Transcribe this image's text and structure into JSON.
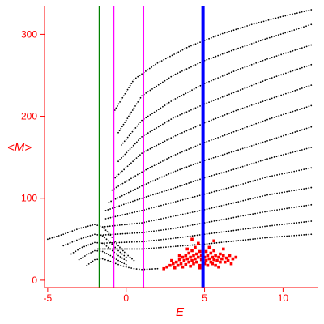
{
  "chart_data": {
    "type": "scatter",
    "title": "",
    "xlabel": "E",
    "ylabel": "<M>",
    "xlim": [
      -5.2,
      12.2
    ],
    "ylim": [
      -9,
      334
    ],
    "xticks": [
      -5,
      0,
      5,
      10
    ],
    "yticks": [
      0,
      100,
      200,
      300
    ],
    "grid": false,
    "colors": {
      "axis": "#ff0000",
      "black_points": "#000000",
      "red_points": "#ff0000",
      "green_line": "#008000",
      "magenta_lines": "#ff00ff",
      "blue_line": "#0000ff"
    },
    "vertical_lines": [
      {
        "x": -1.7,
        "color": "#008000",
        "width": 2
      },
      {
        "x": -0.8,
        "color": "#ff00ff",
        "width": 2
      },
      {
        "x": 1.1,
        "color": "#ff00ff",
        "width": 2
      },
      {
        "x": 4.9,
        "color": "#0000ff",
        "width": 4
      }
    ],
    "series": [
      {
        "color": "#000000",
        "curves": [
          [
            [
              -0.8,
              205
            ],
            [
              0.5,
              245
            ],
            [
              2.0,
              265
            ],
            [
              4.0,
              285
            ],
            [
              6.0,
              300
            ],
            [
              8.0,
              312
            ],
            [
              10.0,
              322
            ],
            [
              11.8,
              330
            ]
          ],
          [
            [
              -0.5,
              180
            ],
            [
              1.0,
              225
            ],
            [
              3.0,
              250
            ],
            [
              5.0,
              268
            ],
            [
              7.0,
              282
            ],
            [
              9.0,
              295
            ],
            [
              11.0,
              307
            ],
            [
              11.8,
              312
            ]
          ],
          [
            [
              -0.3,
              165
            ],
            [
              1.0,
              195
            ],
            [
              3.0,
              220
            ],
            [
              5.0,
              240
            ],
            [
              7.0,
              256
            ],
            [
              9.0,
              270
            ],
            [
              11.8,
              287
            ]
          ],
          [
            [
              -0.5,
              145
            ],
            [
              1.0,
              175
            ],
            [
              3.0,
              198
            ],
            [
              5.0,
              215
            ],
            [
              7.0,
              230
            ],
            [
              9.0,
              245
            ],
            [
              11.8,
              263
            ]
          ],
          [
            [
              -0.7,
              125
            ],
            [
              1.0,
              155
            ],
            [
              3.0,
              175
            ],
            [
              5.0,
              192
            ],
            [
              7.0,
              207
            ],
            [
              9.0,
              220
            ],
            [
              11.8,
              238
            ]
          ],
          [
            [
              -0.9,
              110
            ],
            [
              1.0,
              132
            ],
            [
              3.0,
              152
            ],
            [
              5.0,
              168
            ],
            [
              7.0,
              182
            ],
            [
              9.0,
              196
            ],
            [
              11.8,
              213
            ]
          ],
          [
            [
              -1.1,
              95
            ],
            [
              1.0,
              115
            ],
            [
              3.0,
              132
            ],
            [
              5.0,
              146
            ],
            [
              7.0,
              158
            ],
            [
              9.0,
              170
            ],
            [
              11.8,
              187
            ]
          ],
          [
            [
              -1.3,
              85
            ],
            [
              1.0,
              100
            ],
            [
              3.0,
              112
            ],
            [
              5.0,
              125
            ],
            [
              7.0,
              136
            ],
            [
              9.0,
              148
            ],
            [
              11.8,
              162
            ]
          ],
          [
            [
              -1.3,
              75
            ],
            [
              1.0,
              85
            ],
            [
              3.0,
              95
            ],
            [
              5.0,
              105
            ],
            [
              7.0,
              115
            ],
            [
              9.0,
              126
            ],
            [
              11.8,
              137
            ]
          ],
          [
            [
              -1.5,
              65
            ],
            [
              1.0,
              70
            ],
            [
              3.0,
              78
            ],
            [
              5.0,
              86
            ],
            [
              7.0,
              95
            ],
            [
              9.0,
              104
            ],
            [
              11.8,
              113
            ]
          ],
          [
            [
              -1.6,
              55
            ],
            [
              1.0,
              58
            ],
            [
              3.0,
              63
            ],
            [
              5.0,
              70
            ],
            [
              7.0,
              77
            ],
            [
              9.0,
              84
            ],
            [
              11.8,
              92
            ]
          ],
          [
            [
              -1.7,
              45
            ],
            [
              1.0,
              47
            ],
            [
              3.0,
              51
            ],
            [
              5.0,
              56
            ],
            [
              7.0,
              61
            ],
            [
              9.0,
              66
            ],
            [
              11.8,
              72
            ]
          ],
          [
            [
              -1.8,
              38
            ],
            [
              1.0,
              38
            ],
            [
              3.0,
              41
            ],
            [
              5.0,
              44
            ],
            [
              7.0,
              48
            ],
            [
              9.0,
              52
            ],
            [
              11.8,
              56
            ]
          ],
          [
            [
              -5.0,
              50
            ],
            [
              -4.0,
              56
            ],
            [
              -3.0,
              63
            ],
            [
              -2.0,
              68
            ],
            [
              -1.5,
              65
            ],
            [
              -1.0,
              55
            ],
            [
              -0.5,
              42
            ],
            [
              0.0,
              32
            ],
            [
              0.5,
              24
            ]
          ],
          [
            [
              -4.0,
              42
            ],
            [
              -3.0,
              50
            ],
            [
              -2.0,
              56
            ],
            [
              -1.5,
              54
            ],
            [
              -1.0,
              46
            ],
            [
              -0.5,
              36
            ],
            [
              0.0,
              28
            ]
          ],
          [
            [
              -3.5,
              32
            ],
            [
              -2.8,
              40
            ],
            [
              -2.0,
              46
            ],
            [
              -1.5,
              45
            ],
            [
              -1.0,
              38
            ],
            [
              -0.5,
              30
            ],
            [
              0.0,
              24
            ]
          ],
          [
            [
              -3.0,
              25
            ],
            [
              -2.5,
              31
            ],
            [
              -2.0,
              36
            ],
            [
              -1.5,
              35
            ],
            [
              -1.0,
              30
            ],
            [
              -0.5,
              24
            ],
            [
              0.0,
              19
            ]
          ],
          [
            [
              -2.5,
              18
            ],
            [
              -2.0,
              25
            ],
            [
              -1.5,
              26
            ],
            [
              -1.0,
              23
            ],
            [
              -0.5,
              19
            ],
            [
              0.0,
              16
            ],
            [
              0.5,
              14
            ],
            [
              1.0,
              13
            ],
            [
              2.0,
              14
            ]
          ]
        ]
      },
      {
        "color": "#ff0000",
        "points": [
          [
            2.4,
            14
          ],
          [
            2.6,
            16
          ],
          [
            2.8,
            18
          ],
          [
            3.0,
            20
          ],
          [
            3.1,
            15
          ],
          [
            3.2,
            22
          ],
          [
            3.3,
            18
          ],
          [
            3.4,
            25
          ],
          [
            3.5,
            20
          ],
          [
            3.6,
            28
          ],
          [
            3.6,
            16
          ],
          [
            3.7,
            24
          ],
          [
            3.8,
            30
          ],
          [
            3.8,
            19
          ],
          [
            3.9,
            26
          ],
          [
            4.0,
            22
          ],
          [
            4.0,
            33
          ],
          [
            4.1,
            17
          ],
          [
            4.1,
            28
          ],
          [
            4.2,
            24
          ],
          [
            4.2,
            36
          ],
          [
            4.3,
            20
          ],
          [
            4.3,
            30
          ],
          [
            4.4,
            26
          ],
          [
            4.4,
            40
          ],
          [
            4.5,
            22
          ],
          [
            4.5,
            32
          ],
          [
            4.6,
            28
          ],
          [
            4.6,
            45
          ],
          [
            4.7,
            18
          ],
          [
            4.7,
            35
          ],
          [
            4.8,
            25
          ],
          [
            4.8,
            30
          ],
          [
            5.0,
            20
          ],
          [
            5.0,
            28
          ],
          [
            5.1,
            35
          ],
          [
            5.1,
            24
          ],
          [
            5.2,
            30
          ],
          [
            5.2,
            18
          ],
          [
            5.3,
            26
          ],
          [
            5.3,
            40
          ],
          [
            5.4,
            22
          ],
          [
            5.4,
            33
          ],
          [
            5.5,
            28
          ],
          [
            5.5,
            20
          ],
          [
            5.6,
            36
          ],
          [
            5.6,
            25
          ],
          [
            5.7,
            30
          ],
          [
            5.7,
            18
          ],
          [
            5.8,
            24
          ],
          [
            5.9,
            28
          ],
          [
            6.0,
            22
          ],
          [
            6.0,
            32
          ],
          [
            6.1,
            26
          ],
          [
            6.2,
            30
          ],
          [
            6.3,
            22
          ],
          [
            6.4,
            27
          ],
          [
            6.5,
            24
          ],
          [
            6.6,
            30
          ],
          [
            6.8,
            26
          ],
          [
            7.0,
            28
          ],
          [
            4.2,
            50
          ],
          [
            5.6,
            48
          ],
          [
            4.9,
            42
          ],
          [
            3.9,
            38
          ],
          [
            6.2,
            38
          ],
          [
            3.4,
            30
          ],
          [
            4.7,
            15
          ],
          [
            5.9,
            16
          ],
          [
            2.9,
            24
          ],
          [
            6.7,
            20
          ]
        ]
      }
    ]
  }
}
